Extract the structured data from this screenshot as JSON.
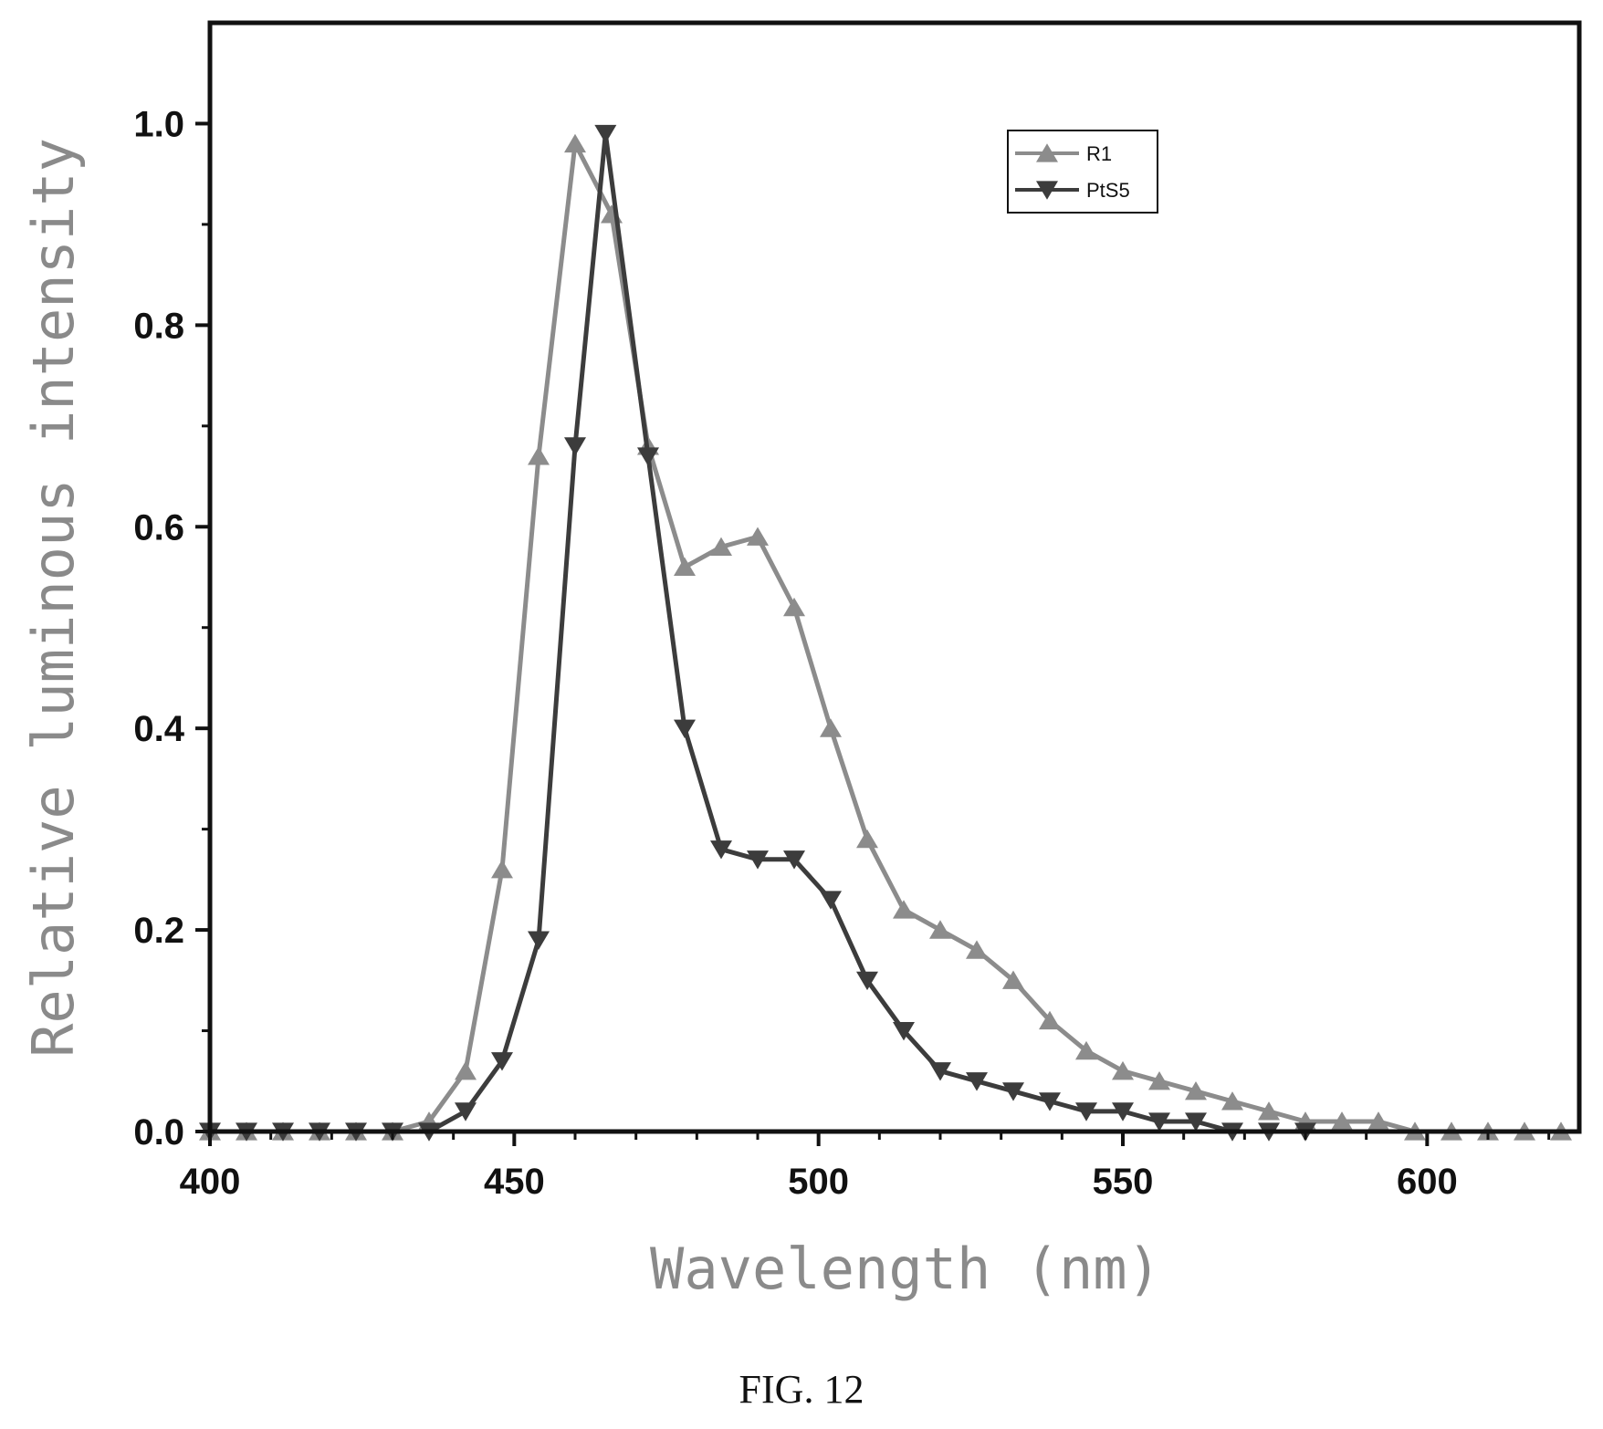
{
  "chart_data": {
    "type": "line",
    "xlabel": "Wavelength (nm)",
    "ylabel": "Relative luminous intensity",
    "xlim": [
      400,
      625
    ],
    "ylim": [
      0,
      1.1
    ],
    "x_ticks": [
      400,
      450,
      500,
      550,
      600
    ],
    "x_tick_labels": [
      "400",
      "450",
      "500",
      "550",
      "600"
    ],
    "y_ticks": [
      0,
      0.2,
      0.4,
      0.6,
      0.8,
      1.0
    ],
    "y_tick_labels": [
      "0.0",
      "0.2",
      "0.4",
      "0.6",
      "0.8",
      "1.0"
    ],
    "legend_position": "top-right",
    "grid": false,
    "series": [
      {
        "name": "R1",
        "color": "#8c8c8c",
        "marker": "triangle-up",
        "x": [
          400,
          406,
          412,
          418,
          424,
          430,
          436,
          442,
          448,
          454,
          460,
          466,
          472,
          478,
          484,
          490,
          496,
          502,
          508,
          514,
          520,
          526,
          532,
          538,
          544,
          550,
          556,
          562,
          568,
          574,
          580,
          586,
          592,
          598,
          604,
          610,
          616,
          622
        ],
        "y": [
          0.0,
          0.0,
          0.0,
          0.0,
          0.0,
          0.0,
          0.01,
          0.06,
          0.26,
          0.67,
          0.98,
          0.91,
          0.68,
          0.56,
          0.58,
          0.59,
          0.52,
          0.4,
          0.29,
          0.22,
          0.2,
          0.18,
          0.15,
          0.11,
          0.08,
          0.06,
          0.05,
          0.04,
          0.03,
          0.02,
          0.01,
          0.01,
          0.01,
          0.0,
          0.0,
          0.0,
          0.0,
          0.0
        ]
      },
      {
        "name": "PtS5",
        "color": "#3c3c3c",
        "marker": "triangle-down",
        "x": [
          400,
          406,
          412,
          418,
          424,
          430,
          436,
          442,
          448,
          454,
          460,
          465,
          472,
          478,
          484,
          490,
          496,
          502,
          508,
          514,
          520,
          526,
          532,
          538,
          544,
          550,
          556,
          562,
          568,
          574,
          580
        ],
        "y": [
          0.0,
          0.0,
          0.0,
          0.0,
          0.0,
          0.0,
          0.0,
          0.02,
          0.07,
          0.19,
          0.68,
          0.99,
          0.67,
          0.4,
          0.28,
          0.27,
          0.27,
          0.23,
          0.15,
          0.1,
          0.06,
          0.05,
          0.04,
          0.03,
          0.02,
          0.02,
          0.01,
          0.01,
          0.0,
          0.0,
          0.0
        ]
      }
    ]
  },
  "caption": "FIG. 12"
}
